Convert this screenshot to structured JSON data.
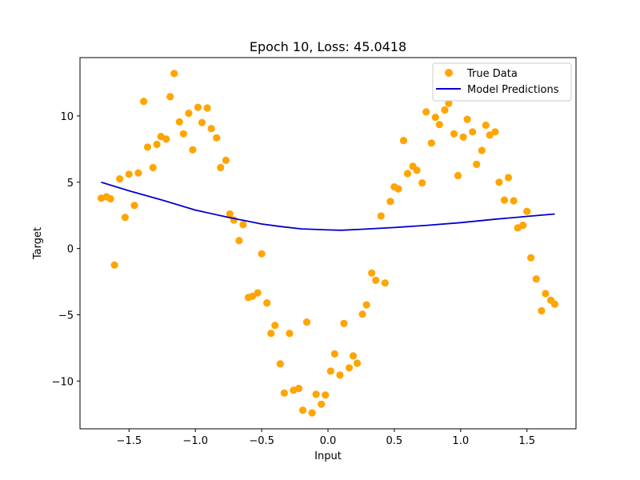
{
  "chart_data": {
    "type": "scatter",
    "title": "Epoch 10, Loss: 45.0418",
    "xlabel": "Input",
    "ylabel": "Target",
    "xlim": [
      -1.87,
      1.87
    ],
    "ylim": [
      -13.6,
      14.4
    ],
    "xticks": [
      -1.5,
      -1.0,
      -0.5,
      0.0,
      0.5,
      1.0,
      1.5
    ],
    "xtick_labels": [
      "−1.5",
      "−1.0",
      "−0.5",
      "0.0",
      "0.5",
      "1.0",
      "1.5"
    ],
    "yticks": [
      -10,
      -5,
      0,
      5,
      10
    ],
    "ytick_labels": [
      "−10",
      "−5",
      "0",
      "5",
      "10"
    ],
    "grid": false,
    "legend_position": "top-right",
    "series": [
      {
        "name": "True Data",
        "kind": "scatter",
        "color": "#ffa500",
        "points": [
          [
            -1.71,
            3.8
          ],
          [
            -1.67,
            3.9
          ],
          [
            -1.64,
            3.75
          ],
          [
            -1.61,
            -1.25
          ],
          [
            -1.57,
            5.25
          ],
          [
            -1.53,
            2.35
          ],
          [
            -1.5,
            5.6
          ],
          [
            -1.46,
            3.25
          ],
          [
            -1.43,
            5.7
          ],
          [
            -1.39,
            11.1
          ],
          [
            -1.36,
            7.65
          ],
          [
            -1.32,
            6.1
          ],
          [
            -1.29,
            7.85
          ],
          [
            -1.26,
            8.45
          ],
          [
            -1.22,
            8.25
          ],
          [
            -1.19,
            11.45
          ],
          [
            -1.16,
            13.2
          ],
          [
            -1.12,
            9.55
          ],
          [
            -1.09,
            8.65
          ],
          [
            -1.05,
            10.2
          ],
          [
            -1.02,
            7.45
          ],
          [
            -0.98,
            10.65
          ],
          [
            -0.95,
            9.5
          ],
          [
            -0.91,
            10.6
          ],
          [
            -0.88,
            9.05
          ],
          [
            -0.84,
            8.35
          ],
          [
            -0.81,
            6.1
          ],
          [
            -0.77,
            6.65
          ],
          [
            -0.74,
            2.6
          ],
          [
            -0.71,
            2.15
          ],
          [
            -0.67,
            0.6
          ],
          [
            -0.64,
            1.8
          ],
          [
            -0.6,
            -3.7
          ],
          [
            -0.57,
            -3.6
          ],
          [
            -0.53,
            -3.35
          ],
          [
            -0.5,
            -0.4
          ],
          [
            -0.46,
            -4.1
          ],
          [
            -0.43,
            -6.4
          ],
          [
            -0.4,
            -5.8
          ],
          [
            -0.36,
            -8.7
          ],
          [
            -0.33,
            -10.9
          ],
          [
            -0.29,
            -6.4
          ],
          [
            -0.26,
            -10.7
          ],
          [
            -0.22,
            -10.55
          ],
          [
            -0.19,
            -12.2
          ],
          [
            -0.16,
            -5.55
          ],
          [
            -0.12,
            -12.4
          ],
          [
            -0.09,
            -11.0
          ],
          [
            -0.05,
            -11.75
          ],
          [
            -0.02,
            -11.05
          ],
          [
            0.02,
            -9.25
          ],
          [
            0.05,
            -7.95
          ],
          [
            0.09,
            -9.55
          ],
          [
            0.12,
            -5.65
          ],
          [
            0.16,
            -9.0
          ],
          [
            0.19,
            -8.1
          ],
          [
            0.22,
            -8.65
          ],
          [
            0.26,
            -4.95
          ],
          [
            0.29,
            -4.25
          ],
          [
            0.33,
            -1.85
          ],
          [
            0.36,
            -2.4
          ],
          [
            0.4,
            2.45
          ],
          [
            0.43,
            -2.6
          ],
          [
            0.47,
            3.55
          ],
          [
            0.5,
            4.65
          ],
          [
            0.53,
            4.5
          ],
          [
            0.57,
            8.15
          ],
          [
            0.6,
            5.65
          ],
          [
            0.64,
            6.2
          ],
          [
            0.67,
            5.9
          ],
          [
            0.71,
            4.95
          ],
          [
            0.74,
            10.3
          ],
          [
            0.78,
            7.95
          ],
          [
            0.81,
            9.9
          ],
          [
            0.84,
            9.35
          ],
          [
            0.88,
            10.45
          ],
          [
            0.91,
            10.95
          ],
          [
            0.95,
            8.65
          ],
          [
            0.98,
            5.5
          ],
          [
            1.02,
            8.4
          ],
          [
            1.05,
            9.75
          ],
          [
            1.09,
            8.8
          ],
          [
            1.12,
            6.35
          ],
          [
            1.16,
            7.4
          ],
          [
            1.19,
            9.3
          ],
          [
            1.22,
            8.55
          ],
          [
            1.26,
            8.8
          ],
          [
            1.29,
            5.0
          ],
          [
            1.33,
            3.65
          ],
          [
            1.36,
            5.35
          ],
          [
            1.4,
            3.6
          ],
          [
            1.43,
            1.55
          ],
          [
            1.47,
            1.75
          ],
          [
            1.5,
            2.8
          ],
          [
            1.53,
            -0.7
          ],
          [
            1.57,
            -2.3
          ],
          [
            1.61,
            -4.7
          ],
          [
            1.64,
            -3.4
          ],
          [
            1.68,
            -3.9
          ],
          [
            1.71,
            -4.2
          ]
        ]
      },
      {
        "name": "Model Predictions",
        "kind": "line",
        "color": "#0000cd",
        "points": [
          [
            -1.71,
            5.0
          ],
          [
            -1.5,
            4.35
          ],
          [
            -1.25,
            3.65
          ],
          [
            -1.0,
            2.9
          ],
          [
            -0.75,
            2.35
          ],
          [
            -0.5,
            1.85
          ],
          [
            -0.35,
            1.65
          ],
          [
            -0.2,
            1.48
          ],
          [
            0.0,
            1.4
          ],
          [
            0.1,
            1.38
          ],
          [
            0.25,
            1.45
          ],
          [
            0.5,
            1.58
          ],
          [
            0.75,
            1.75
          ],
          [
            1.0,
            1.95
          ],
          [
            1.25,
            2.2
          ],
          [
            1.5,
            2.42
          ],
          [
            1.71,
            2.6
          ]
        ]
      }
    ]
  }
}
